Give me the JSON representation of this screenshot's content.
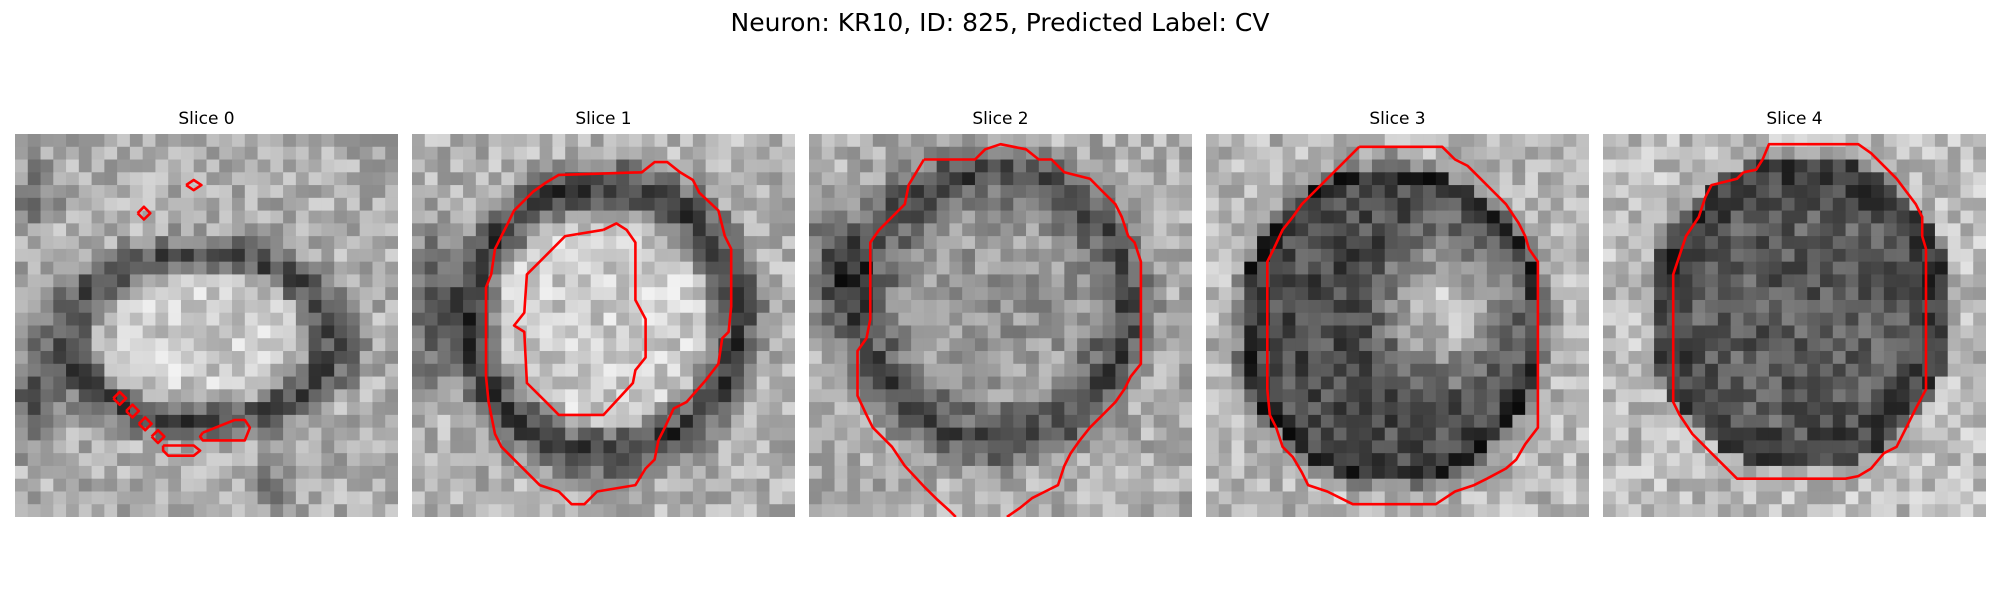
{
  "figure": {
    "title": "Neuron: KR10, ID: 825, Predicted Label: CV"
  },
  "contour_color": "#ff0000",
  "colormap": "grayscale",
  "panels": [
    {
      "title": "Slice 0"
    },
    {
      "title": "Slice 1"
    },
    {
      "title": "Slice 2"
    },
    {
      "title": "Slice 3"
    },
    {
      "title": "Slice 4"
    }
  ]
}
